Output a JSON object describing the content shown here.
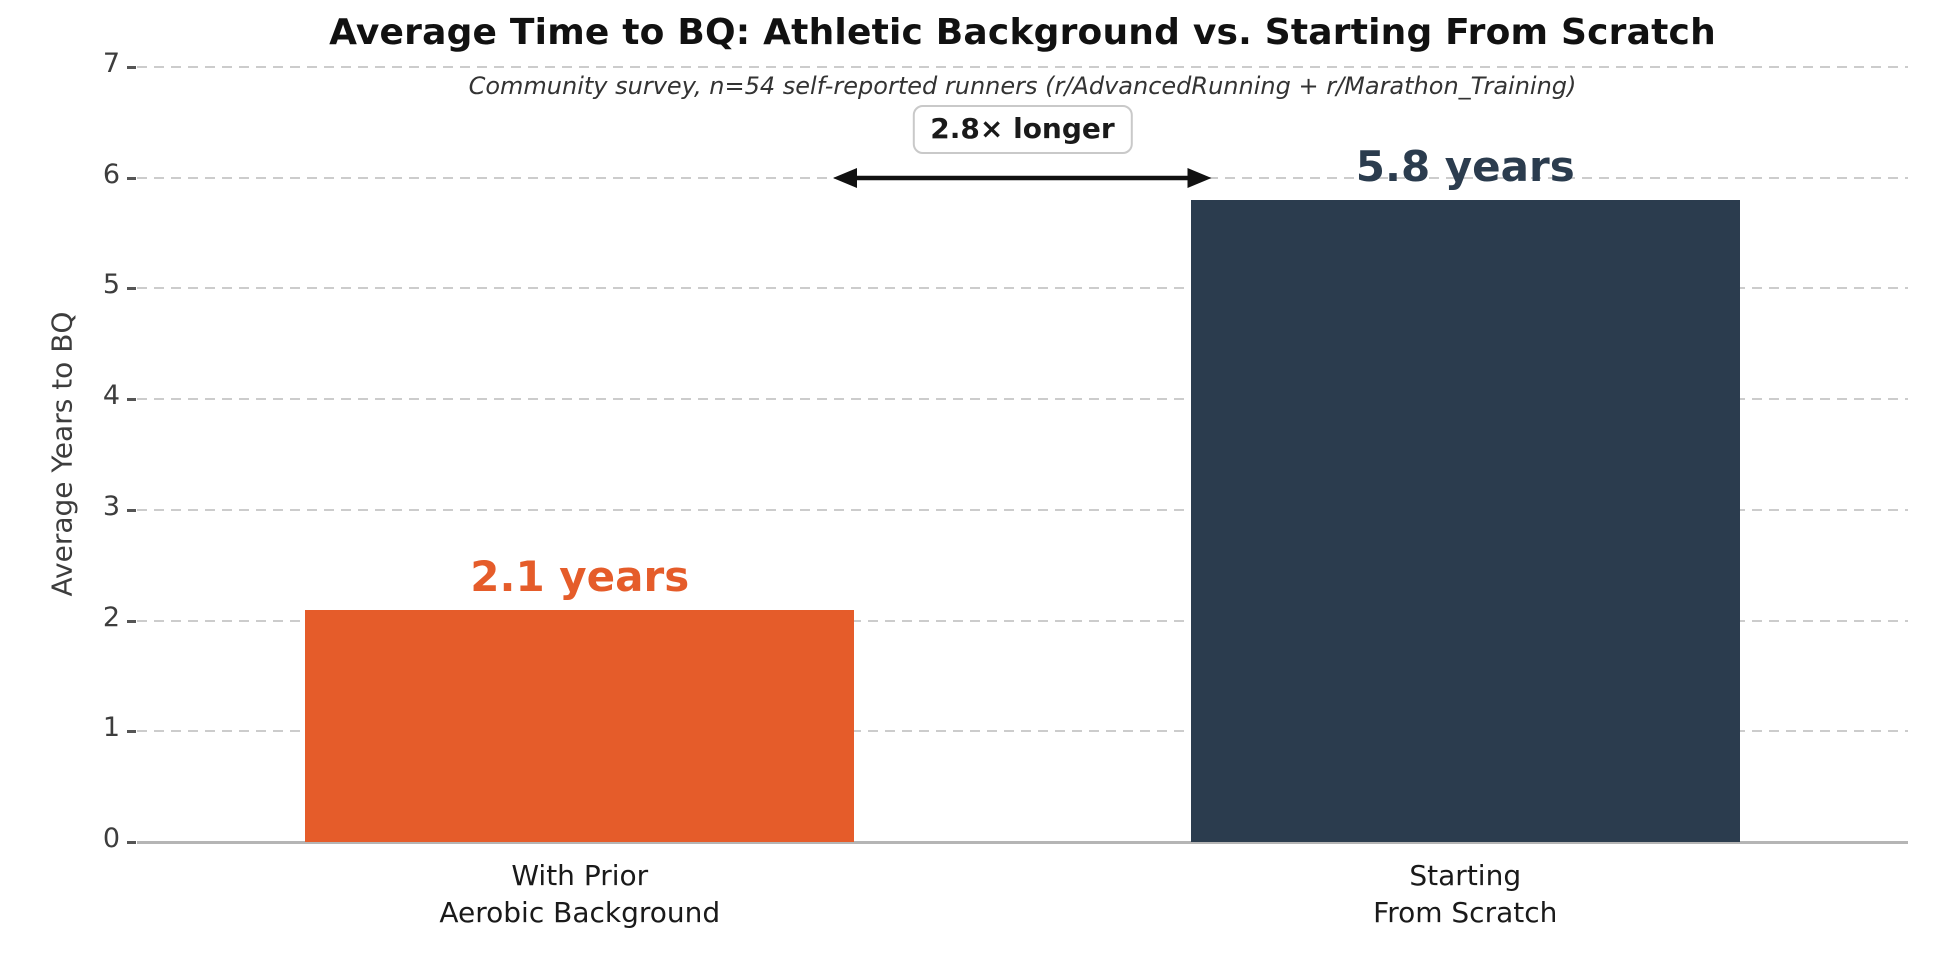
{
  "chart_data": {
    "type": "bar",
    "title": "Average Time to BQ: Athletic Background vs. Starting From Scratch",
    "subtitle": "Community survey, n=54 self-reported runners (r/AdvancedRunning + r/Marathon_Training)",
    "xlabel": "",
    "ylabel": "Average Years to BQ",
    "ylim": [
      0,
      7
    ],
    "yticks": [
      0,
      1,
      2,
      3,
      4,
      5,
      6,
      7
    ],
    "grid": "horizontal-dashed",
    "legend": "none",
    "categories": [
      {
        "name": "with-prior-aerobic-background",
        "lines": [
          "With Prior",
          "Aerobic Background"
        ]
      },
      {
        "name": "starting-from-scratch",
        "lines": [
          "Starting",
          "From Scratch"
        ]
      }
    ],
    "series": [
      {
        "name": "Average years to BQ",
        "values": [
          2.1,
          5.8
        ],
        "bar_colors": [
          "#E55C2A",
          "#2B3C4E"
        ],
        "value_labels": [
          "2.1 years",
          "5.8 years"
        ],
        "value_label_colors": [
          "#E55C2A",
          "#2B3C4E"
        ]
      }
    ],
    "annotation": {
      "label": "2.8× longer",
      "arrow_type": "double-headed-horizontal",
      "arrow_y_value": 6,
      "arrow_spans_between": [
        "right edge of bar 1",
        "left edge of bar 2"
      ]
    }
  },
  "colors": {
    "background": "#FFFFFF",
    "bar_prior_background": "#E55C2A",
    "bar_from_scratch": "#2B3C4E",
    "gridline": "#CCCCCC",
    "baseline": "#B5B5B5",
    "title_text": "#111111",
    "subtitle_text": "#333333",
    "tick_text": "#3D3D3D",
    "category_text": "#1A1A1A",
    "annotation_text": "#1A1A1A",
    "annotation_border": "#C9C9C9",
    "arrow": "#111111"
  }
}
